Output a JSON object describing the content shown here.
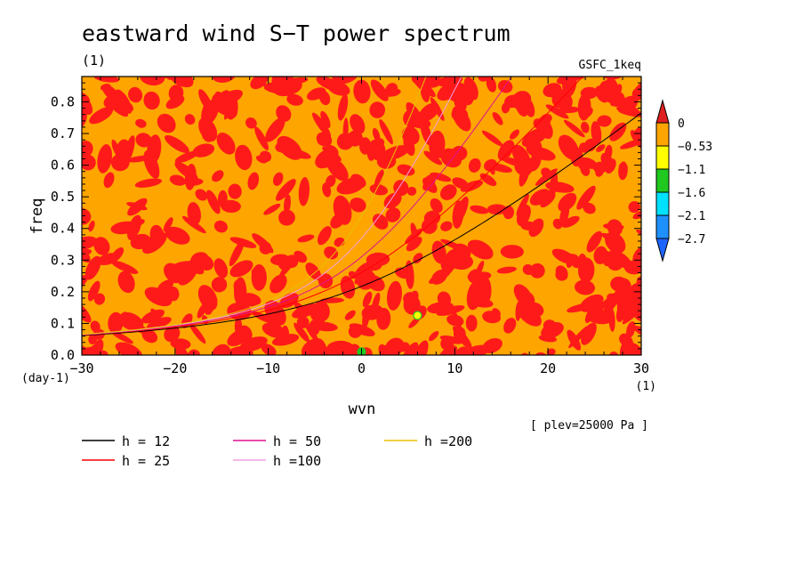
{
  "chart_data": {
    "type": "heatmap",
    "title": "eastward wind S−T power spectrum",
    "subtitle": "(1)",
    "dataset_label": "GSFC_1keq",
    "xlabel": "wvn",
    "ylabel": "freq",
    "x_unit": "(1)",
    "y_unit": "(day-1)",
    "level_note": "[ plev=25000 Pa ]",
    "xlim": [
      -30,
      30
    ],
    "ylim": [
      0,
      0.88
    ],
    "x_ticks": [
      "−30",
      "−20",
      "−10",
      "0",
      "10",
      "20",
      "30"
    ],
    "x_tick_values": [
      -30,
      -20,
      -10,
      0,
      10,
      20,
      30
    ],
    "y_ticks": [
      "0.0",
      "0.1",
      "0.2",
      "0.3",
      "0.4",
      "0.5",
      "0.6",
      "0.7",
      "0.8"
    ],
    "y_tick_values": [
      0,
      0.1,
      0.2,
      0.3,
      0.4,
      0.5,
      0.6,
      0.7,
      0.8
    ],
    "colorbar": {
      "labels": [
        "0",
        "−0.53",
        "−1.1",
        "−1.6",
        "−2.1",
        "−2.7"
      ],
      "colors": [
        "#e02020",
        "#ffa500",
        "#ffff00",
        "#20c820",
        "#00e0ff",
        "#1e90ff",
        "#1e64ff"
      ]
    },
    "field_colors": {
      "background": "#ffa500",
      "high": "#ff1a1a"
    },
    "anomalies": [
      {
        "x": 6,
        "y": 0.125,
        "color": "#ffff00"
      },
      {
        "x": 0,
        "y": 0.01,
        "color": "#20c820"
      }
    ],
    "dispersion_curves": [
      {
        "name": "h = 12",
        "h": 12,
        "color": "#000000"
      },
      {
        "name": "h = 25",
        "h": 25,
        "color": "#ff0000"
      },
      {
        "name": "h = 50",
        "h": 50,
        "color": "#e01090"
      },
      {
        "name": "h =100",
        "h": 100,
        "color": "#f0a0e0"
      },
      {
        "name": "h =200",
        "h": 200,
        "color": "#e8c000"
      }
    ]
  }
}
